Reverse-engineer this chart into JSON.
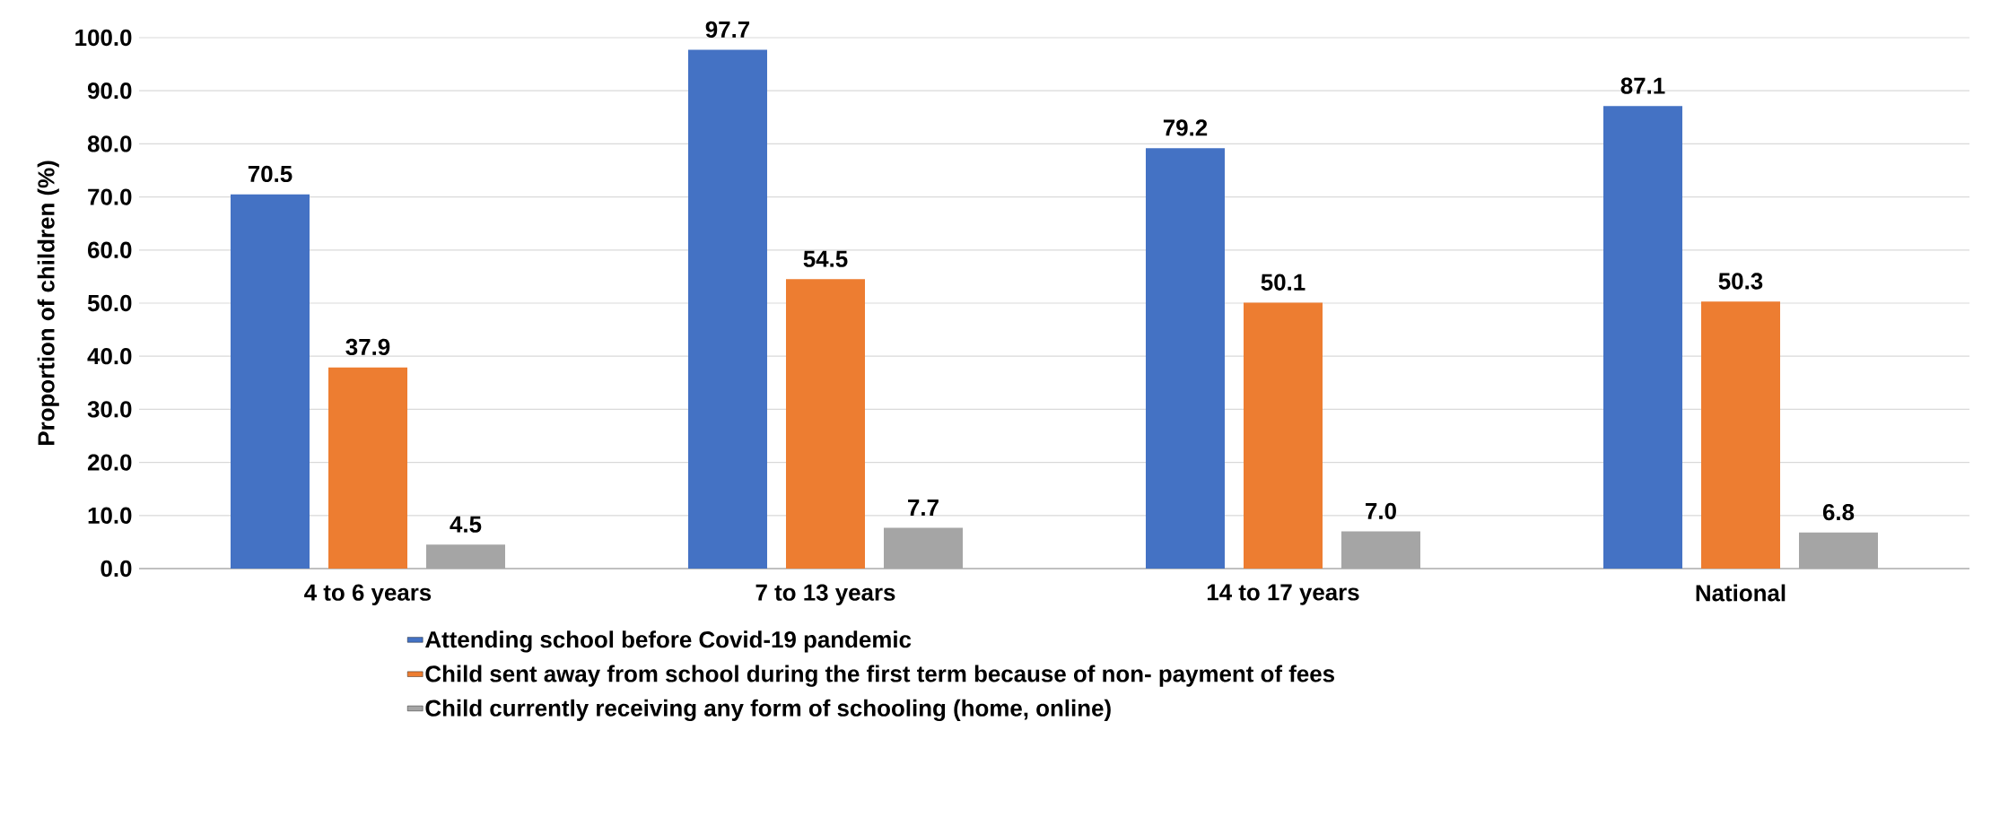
{
  "chart_data": {
    "type": "bar",
    "ylabel": "Proportion of children (%)",
    "categories": [
      "4 to 6 years",
      "7 to 13 years",
      "14 to 17 years",
      "National"
    ],
    "series": [
      {
        "name": "Attending school before Covid-19 pandemic",
        "color": "#4472c4",
        "values": [
          70.5,
          97.7,
          79.2,
          87.1
        ],
        "value_labels": [
          "70.5",
          "97.7",
          "79.2",
          "87.1"
        ]
      },
      {
        "name": "Child sent away from school during the first term because of non- payment of fees",
        "color": "#ed7d31",
        "values": [
          37.9,
          54.5,
          50.1,
          50.3
        ],
        "value_labels": [
          "37.9",
          "54.5",
          "50.1",
          "50.3"
        ]
      },
      {
        "name": "Child currently receiving any form of schooling (home, online)",
        "color": "#a5a5a5",
        "values": [
          4.5,
          7.7,
          7.0,
          6.8
        ],
        "value_labels": [
          "4.5",
          "7.7",
          "7.0",
          "6.8"
        ]
      }
    ],
    "ylim": [
      0,
      100
    ],
    "yticks": [
      {
        "value": 0,
        "label": "0.0"
      },
      {
        "value": 10,
        "label": "10.0"
      },
      {
        "value": 20,
        "label": "20.0"
      },
      {
        "value": 30,
        "label": "30.0"
      },
      {
        "value": 40,
        "label": "40.0"
      },
      {
        "value": 50,
        "label": "50.0"
      },
      {
        "value": 60,
        "label": "60.0"
      },
      {
        "value": 70,
        "label": "70.0"
      },
      {
        "value": 80,
        "label": "80.0"
      },
      {
        "value": 90,
        "label": "90.0"
      },
      {
        "value": 100,
        "label": "100.0"
      }
    ],
    "grid": "y",
    "legend": "bottom"
  }
}
